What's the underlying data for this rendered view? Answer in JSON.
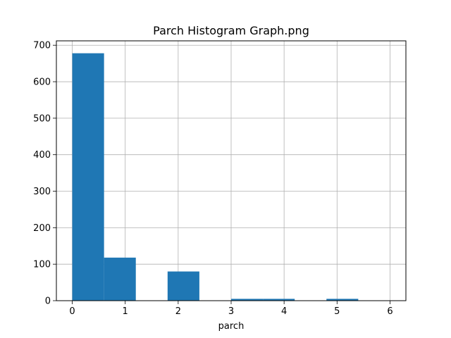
{
  "chart_data": {
    "type": "bar",
    "title": "Parch Histogram Graph.png",
    "xlabel": "parch",
    "ylabel": "",
    "bin_edges": [
      0,
      0.6,
      1.2,
      1.8,
      2.4,
      3.0,
      3.6,
      4.2,
      4.8,
      5.4,
      6.0
    ],
    "values": [
      678,
      118,
      0,
      80,
      0,
      5,
      5,
      0,
      5,
      0
    ],
    "xlim": [
      -0.3,
      6.3
    ],
    "ylim": [
      0,
      712
    ],
    "xticks": [
      "0",
      "1",
      "2",
      "3",
      "4",
      "5",
      "6"
    ],
    "yticks": [
      "0",
      "100",
      "200",
      "300",
      "400",
      "500",
      "600",
      "700"
    ],
    "grid": true,
    "bar_color": "#1f77b4",
    "grid_color": "#b0b0b0"
  }
}
